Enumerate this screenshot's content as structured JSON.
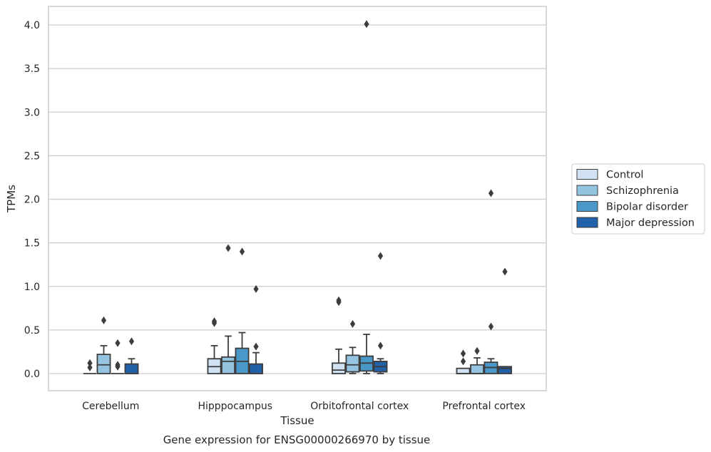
{
  "caption": "Gene expression for ENSG00000266970 by tissue",
  "colors": {
    "Control": "#d1e2f2",
    "Schizophrenia": "#94c4df",
    "Bipolar disorder": "#4a98c9",
    "Major depression": "#2260a8",
    "edge": "#3d3d3d",
    "grid": "#cccccc",
    "frame": "#cccccc"
  },
  "chart_data": {
    "type": "box",
    "xlabel": "Tissue",
    "ylabel": "TPMs",
    "ylim": [
      -0.2,
      4.22
    ],
    "yticks": [
      0.0,
      0.5,
      1.0,
      1.5,
      2.0,
      2.5,
      3.0,
      3.5,
      4.0
    ],
    "ytick_labels": [
      "0.0",
      "0.5",
      "1.0",
      "1.5",
      "2.0",
      "2.5",
      "3.0",
      "3.5",
      "4.0"
    ],
    "grid": "horizontal",
    "legend_position": "right",
    "categories": [
      "Cerebellum",
      "Hipppocampus",
      "Orbitofrontal cortex",
      "Prefrontal cortex"
    ],
    "series": [
      {
        "name": "Control",
        "boxes": [
          {
            "q1": 0.0,
            "median": 0.0,
            "q3": 0.0,
            "whisker_low": 0.0,
            "whisker_high": 0.0,
            "outliers": [
              0.07,
              0.12
            ]
          },
          {
            "q1": 0.0,
            "median": 0.08,
            "q3": 0.17,
            "whisker_low": 0.0,
            "whisker_high": 0.32,
            "outliers": [
              0.58,
              0.6
            ]
          },
          {
            "q1": 0.0,
            "median": 0.04,
            "q3": 0.12,
            "whisker_low": 0.0,
            "whisker_high": 0.28,
            "outliers": [
              0.82,
              0.84
            ]
          },
          {
            "q1": 0.0,
            "median": 0.0,
            "q3": 0.06,
            "whisker_low": 0.0,
            "whisker_high": 0.06,
            "outliers": [
              0.14,
              0.23
            ]
          }
        ]
      },
      {
        "name": "Schizophrenia",
        "boxes": [
          {
            "q1": 0.0,
            "median": 0.1,
            "q3": 0.22,
            "whisker_low": 0.0,
            "whisker_high": 0.32,
            "outliers": [
              0.61
            ]
          },
          {
            "q1": 0.0,
            "median": 0.14,
            "q3": 0.19,
            "whisker_low": 0.0,
            "whisker_high": 0.43,
            "outliers": [
              1.44
            ]
          },
          {
            "q1": 0.02,
            "median": 0.1,
            "q3": 0.21,
            "whisker_low": 0.0,
            "whisker_high": 0.3,
            "outliers": [
              0.57
            ]
          },
          {
            "q1": 0.0,
            "median": 0.0,
            "q3": 0.1,
            "whisker_low": 0.0,
            "whisker_high": 0.18,
            "outliers": [
              0.26
            ]
          }
        ]
      },
      {
        "name": "Bipolar disorder",
        "boxes": [
          {
            "q1": 0.0,
            "median": 0.0,
            "q3": 0.0,
            "whisker_low": 0.0,
            "whisker_high": 0.0,
            "outliers": [
              0.08,
              0.1,
              0.35
            ]
          },
          {
            "q1": 0.0,
            "median": 0.14,
            "q3": 0.29,
            "whisker_low": 0.0,
            "whisker_high": 0.47,
            "outliers": [
              1.4
            ]
          },
          {
            "q1": 0.03,
            "median": 0.12,
            "q3": 0.2,
            "whisker_low": 0.0,
            "whisker_high": 0.45,
            "outliers": [
              4.01
            ]
          },
          {
            "q1": 0.0,
            "median": 0.07,
            "q3": 0.13,
            "whisker_low": 0.0,
            "whisker_high": 0.17,
            "outliers": [
              0.54,
              2.07
            ]
          }
        ]
      },
      {
        "name": "Major depression",
        "boxes": [
          {
            "q1": 0.0,
            "median": 0.0,
            "q3": 0.11,
            "whisker_low": 0.0,
            "whisker_high": 0.17,
            "outliers": [
              0.37
            ]
          },
          {
            "q1": 0.0,
            "median": 0.0,
            "q3": 0.11,
            "whisker_low": 0.0,
            "whisker_high": 0.24,
            "outliers": [
              0.31,
              0.97
            ]
          },
          {
            "q1": 0.02,
            "median": 0.08,
            "q3": 0.14,
            "whisker_low": 0.0,
            "whisker_high": 0.17,
            "outliers": [
              0.32,
              1.35
            ]
          },
          {
            "q1": 0.0,
            "median": 0.06,
            "q3": 0.08,
            "whisker_low": 0.0,
            "whisker_high": 0.08,
            "outliers": [
              1.17
            ]
          }
        ]
      }
    ]
  }
}
